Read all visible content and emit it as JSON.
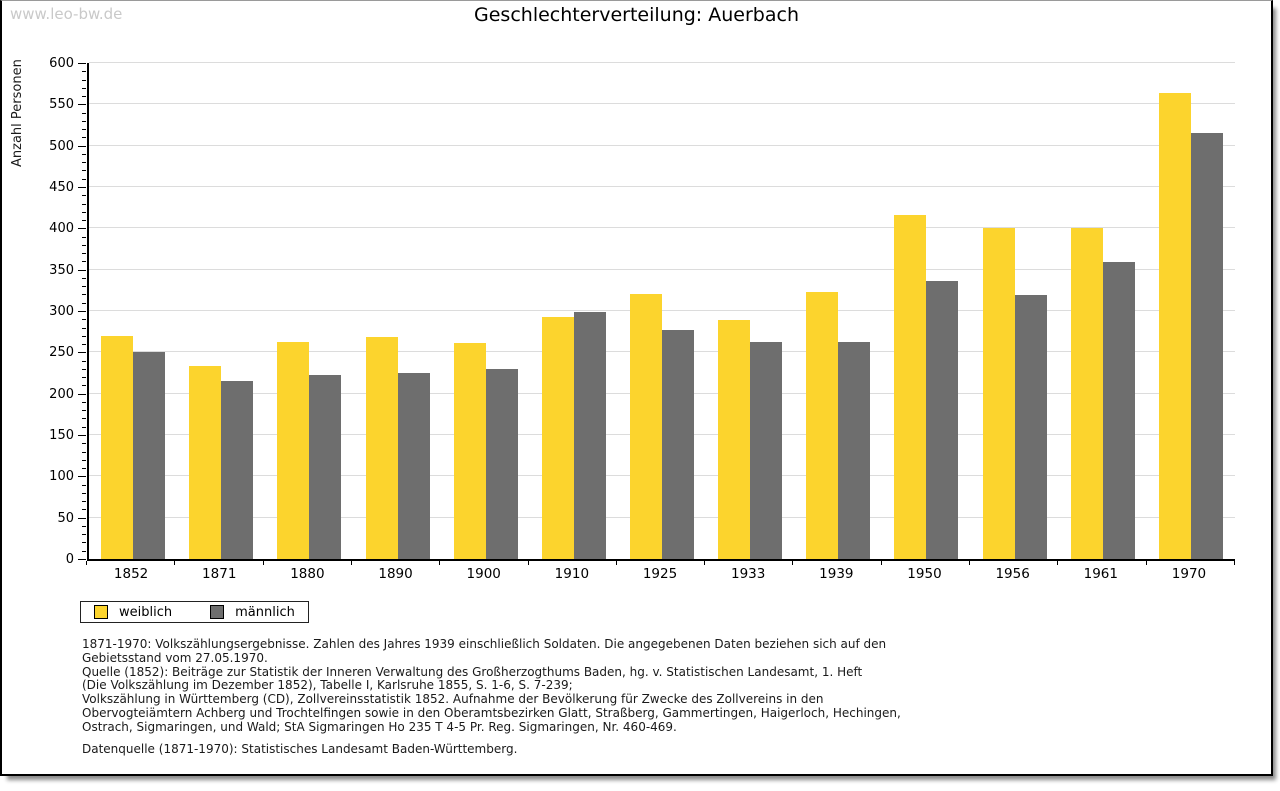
{
  "watermark": "www.leo-bw.de",
  "chart_data": {
    "type": "bar",
    "title": "Geschlechterverteilung: Auerbach",
    "ylabel": "Anzahl Personen",
    "xlabel": "",
    "categories": [
      "1852",
      "1871",
      "1880",
      "1890",
      "1900",
      "1910",
      "1925",
      "1933",
      "1939",
      "1950",
      "1956",
      "1961",
      "1970"
    ],
    "series": [
      {
        "name": "weiblich",
        "color": "#FCD42D",
        "values": [
          270,
          233,
          263,
          269,
          261,
          293,
          321,
          289,
          323,
          416,
          400,
          400,
          564
        ]
      },
      {
        "name": "männlich",
        "color": "#6E6E6E",
        "values": [
          250,
          215,
          223,
          225,
          230,
          299,
          277,
          263,
          263,
          336,
          319,
          359,
          515
        ]
      }
    ],
    "ylim": [
      0,
      600
    ],
    "ytick_step": 50,
    "yminor_step": 10,
    "grid": "horizontal",
    "gridline_color": "#dcdcdc",
    "legend_position": "bottom-left"
  },
  "notes": {
    "lines": [
      "1871-1970: Volkszählungsergebnisse. Zahlen des Jahres 1939 einschließlich Soldaten. Die angegebenen Daten beziehen sich auf den",
      "Gebietsstand vom 27.05.1970.",
      "Quelle (1852): Beiträge zur Statistik der Inneren Verwaltung des Großherzogthums Baden, hg. v. Statistischen Landesamt, 1. Heft",
      "(Die Volkszählung im Dezember 1852), Tabelle I, Karlsruhe 1855, S. 1-6, S. 7-239;",
      "Volkszählung in Württemberg (CD), Zollvereinsstatistik 1852. Aufnahme der Bevölkerung für Zwecke des Zollvereins in den",
      "Obervogteiämtern Achberg und Trochtelfingen sowie in den Oberamtsbezirken Glatt, Straßberg, Gammertingen, Haigerloch, Hechingen,",
      "Ostrach, Sigmaringen, und Wald; StA Sigmaringen Ho 235 T 4-5 Pr. Reg. Sigmaringen, Nr. 460-469."
    ],
    "datasource": "Datenquelle (1871-1970): Statistisches Landesamt Baden-Württemberg."
  }
}
